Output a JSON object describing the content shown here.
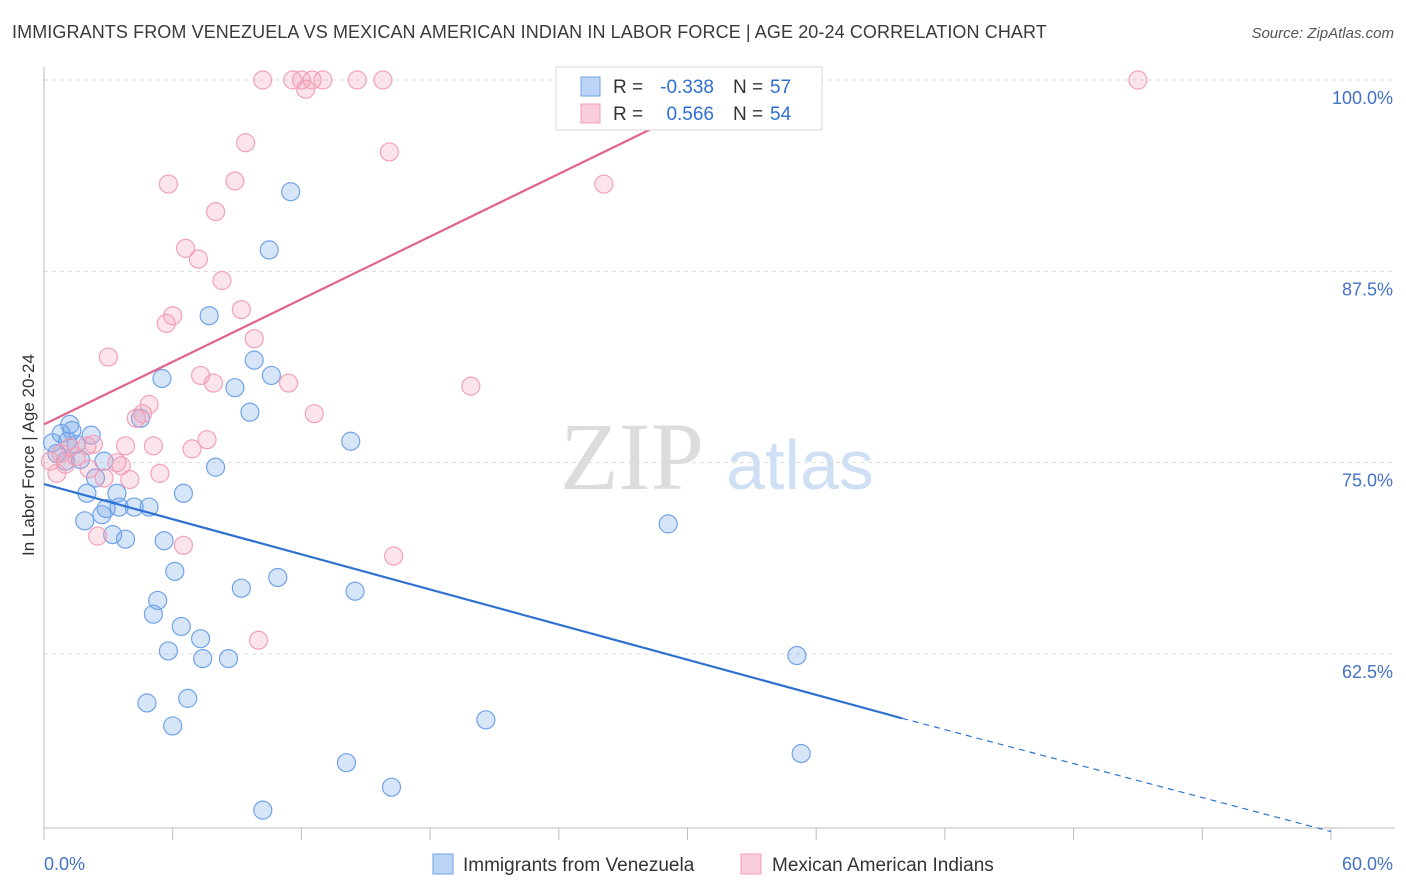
{
  "title": "IMMIGRANTS FROM VENEZUELA VS MEXICAN AMERICAN INDIAN IN LABOR FORCE | AGE 20-24 CORRELATION CHART",
  "source": "Source: ZipAtlas.com",
  "watermark": {
    "zip": "ZIP",
    "atlas": "atlas"
  },
  "chart_data": {
    "type": "scatter",
    "ylabel": "In Labor Force | Age 20-24",
    "xlim": [
      0,
      60
    ],
    "ylim": [
      52,
      101
    ],
    "x_tick_labels": [
      "0.0%",
      "60.0%"
    ],
    "y_ticks": [
      62.5,
      75.0,
      87.5,
      100.0
    ],
    "y_tick_labels": [
      "62.5%",
      "75.0%",
      "87.5%",
      "100.0%"
    ],
    "grid": true,
    "legend_position": "top-center",
    "series": [
      {
        "name": "Immigrants from Venezuela",
        "color": "#6fa3e8",
        "line_color": "#2f72d0",
        "R": "-0.338",
        "N": "57",
        "R_label": "R =",
        "N_label": "N =",
        "trend": {
          "x0": 0,
          "y0": 73.6,
          "x1": 40,
          "y1": 58.3,
          "dash_to_x": 60,
          "dash_to_y": 50.9
        },
        "points": [
          [
            0.4,
            76.3
          ],
          [
            0.6,
            75.6
          ],
          [
            0.8,
            76.9
          ],
          [
            1.0,
            75.1
          ],
          [
            1.1,
            76.4
          ],
          [
            1.2,
            77.5
          ],
          [
            1.3,
            77.1
          ],
          [
            1.5,
            76.2
          ],
          [
            1.7,
            75.2
          ],
          [
            1.9,
            71.2
          ],
          [
            2.0,
            73.0
          ],
          [
            2.2,
            76.8
          ],
          [
            2.4,
            74.0
          ],
          [
            2.8,
            75.1
          ],
          [
            2.7,
            71.6
          ],
          [
            2.9,
            72.0
          ],
          [
            3.2,
            70.3
          ],
          [
            3.4,
            73.0
          ],
          [
            3.5,
            72.1
          ],
          [
            3.8,
            70.0
          ],
          [
            4.2,
            72.1
          ],
          [
            4.5,
            77.9
          ],
          [
            4.8,
            59.3
          ],
          [
            4.9,
            72.1
          ],
          [
            5.1,
            65.1
          ],
          [
            5.3,
            66.0
          ],
          [
            5.5,
            80.5
          ],
          [
            5.6,
            69.9
          ],
          [
            5.8,
            62.7
          ],
          [
            6.0,
            57.8
          ],
          [
            6.1,
            67.9
          ],
          [
            6.4,
            64.3
          ],
          [
            6.5,
            73.0
          ],
          [
            6.7,
            59.6
          ],
          [
            7.3,
            63.5
          ],
          [
            7.4,
            62.2
          ],
          [
            7.7,
            84.6
          ],
          [
            8.0,
            74.7
          ],
          [
            8.6,
            62.2
          ],
          [
            8.9,
            79.9
          ],
          [
            9.2,
            66.8
          ],
          [
            9.6,
            78.3
          ],
          [
            9.8,
            81.7
          ],
          [
            10.2,
            52.3
          ],
          [
            10.5,
            88.9
          ],
          [
            10.6,
            80.7
          ],
          [
            10.9,
            67.5
          ],
          [
            11.5,
            92.7
          ],
          [
            14.1,
            55.4
          ],
          [
            14.3,
            76.4
          ],
          [
            14.5,
            66.6
          ],
          [
            16.2,
            53.8
          ],
          [
            20.6,
            58.2
          ],
          [
            29.1,
            71.0
          ],
          [
            35.1,
            62.4
          ],
          [
            35.3,
            56.0
          ]
        ]
      },
      {
        "name": "Mexican American Indians",
        "color": "#f2a0b8",
        "line_color": "#e0648c",
        "R": "0.566",
        "N": "54",
        "R_label": "R =",
        "N_label": "N =",
        "trend": {
          "x0": 0,
          "y0": 77.5,
          "x1": 33,
          "y1": 100.0
        },
        "points": [
          [
            0.3,
            75.1
          ],
          [
            0.6,
            74.3
          ],
          [
            0.8,
            75.6
          ],
          [
            1.0,
            74.9
          ],
          [
            1.2,
            76.0
          ],
          [
            1.5,
            75.4
          ],
          [
            2.0,
            76.1
          ],
          [
            2.1,
            74.6
          ],
          [
            2.3,
            76.2
          ],
          [
            2.5,
            70.2
          ],
          [
            2.8,
            74.0
          ],
          [
            3.0,
            81.9
          ],
          [
            3.4,
            75.0
          ],
          [
            3.6,
            74.8
          ],
          [
            3.8,
            76.1
          ],
          [
            4.0,
            73.9
          ],
          [
            4.3,
            77.9
          ],
          [
            4.6,
            78.2
          ],
          [
            4.9,
            78.8
          ],
          [
            5.1,
            76.1
          ],
          [
            5.4,
            74.3
          ],
          [
            5.7,
            84.1
          ],
          [
            5.8,
            93.2
          ],
          [
            6.0,
            84.6
          ],
          [
            6.5,
            69.6
          ],
          [
            6.6,
            89.0
          ],
          [
            6.9,
            75.9
          ],
          [
            7.2,
            88.3
          ],
          [
            7.3,
            80.7
          ],
          [
            7.6,
            76.5
          ],
          [
            7.9,
            80.2
          ],
          [
            8.0,
            91.4
          ],
          [
            8.3,
            86.9
          ],
          [
            8.9,
            93.4
          ],
          [
            9.2,
            85.0
          ],
          [
            9.4,
            95.9
          ],
          [
            9.8,
            83.1
          ],
          [
            10.0,
            63.4
          ],
          [
            10.2,
            100.0
          ],
          [
            11.4,
            80.2
          ],
          [
            11.6,
            100.0
          ],
          [
            12.0,
            100.0
          ],
          [
            12.2,
            99.4
          ],
          [
            12.5,
            100.0
          ],
          [
            12.6,
            78.2
          ],
          [
            13.0,
            100.0
          ],
          [
            14.6,
            100.0
          ],
          [
            15.8,
            100.0
          ],
          [
            16.1,
            95.3
          ],
          [
            16.3,
            68.9
          ],
          [
            19.9,
            80.0
          ],
          [
            26.1,
            93.2
          ],
          [
            51.0,
            100.0
          ]
        ]
      }
    ]
  }
}
